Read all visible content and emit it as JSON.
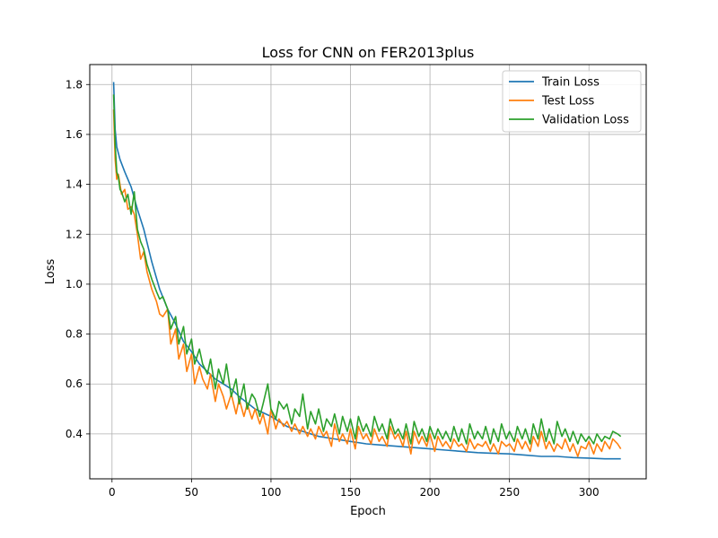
{
  "chart_data": {
    "type": "line",
    "title": "Loss for CNN on FER2013plus",
    "xlabel": "Epoch",
    "ylabel": "Loss",
    "xlim": [
      -14,
      336
    ],
    "ylim": [
      0.22,
      1.88
    ],
    "xticks": [
      0,
      50,
      100,
      150,
      200,
      250,
      300
    ],
    "yticks": [
      0.4,
      0.6,
      0.8,
      1.0,
      1.2,
      1.4,
      1.6,
      1.8
    ],
    "ytick_labels": [
      "0.4",
      "0.6",
      "0.8",
      "1.0",
      "1.2",
      "1.4",
      "1.6",
      "1.8"
    ],
    "grid": true,
    "legend_position": "top-right",
    "series": [
      {
        "name": "Train Loss",
        "color": "#1f77b4",
        "x": [
          1,
          2,
          3,
          5,
          8,
          12,
          16,
          20,
          25,
          30,
          35,
          40,
          45,
          50,
          55,
          60,
          65,
          70,
          75,
          80,
          90,
          100,
          110,
          120,
          130,
          140,
          150,
          160,
          170,
          180,
          190,
          200,
          210,
          220,
          230,
          240,
          250,
          260,
          270,
          280,
          290,
          300,
          310,
          320
        ],
        "y": [
          1.81,
          1.62,
          1.55,
          1.5,
          1.45,
          1.39,
          1.3,
          1.22,
          1.09,
          0.98,
          0.9,
          0.84,
          0.77,
          0.73,
          0.68,
          0.65,
          0.62,
          0.6,
          0.58,
          0.55,
          0.5,
          0.47,
          0.43,
          0.41,
          0.39,
          0.38,
          0.37,
          0.36,
          0.355,
          0.35,
          0.345,
          0.34,
          0.335,
          0.33,
          0.325,
          0.322,
          0.32,
          0.315,
          0.31,
          0.31,
          0.305,
          0.303,
          0.3,
          0.3
        ]
      },
      {
        "name": "Test Loss",
        "color": "#ff7f0e",
        "x": [
          1,
          2,
          3,
          4,
          5,
          6,
          8,
          10,
          12,
          14,
          16,
          18,
          20,
          22,
          25,
          28,
          30,
          32,
          35,
          37,
          40,
          42,
          45,
          47,
          50,
          52,
          55,
          57,
          60,
          62,
          65,
          67,
          70,
          72,
          75,
          78,
          80,
          83,
          85,
          88,
          90,
          93,
          95,
          98,
          100,
          103,
          105,
          108,
          110,
          113,
          115,
          118,
          120,
          123,
          125,
          128,
          130,
          133,
          135,
          138,
          140,
          143,
          145,
          148,
          150,
          153,
          155,
          158,
          160,
          163,
          165,
          168,
          170,
          173,
          175,
          178,
          180,
          183,
          185,
          188,
          190,
          193,
          195,
          198,
          200,
          203,
          205,
          208,
          210,
          213,
          215,
          218,
          220,
          223,
          225,
          228,
          230,
          233,
          235,
          238,
          240,
          243,
          245,
          248,
          250,
          253,
          255,
          258,
          260,
          263,
          265,
          268,
          270,
          273,
          275,
          278,
          280,
          283,
          285,
          288,
          290,
          293,
          295,
          298,
          300,
          303,
          305,
          308,
          310,
          313,
          315,
          318,
          320
        ],
        "y": [
          1.7,
          1.5,
          1.42,
          1.44,
          1.4,
          1.36,
          1.38,
          1.3,
          1.31,
          1.28,
          1.2,
          1.1,
          1.13,
          1.05,
          0.98,
          0.93,
          0.88,
          0.87,
          0.9,
          0.76,
          0.82,
          0.7,
          0.76,
          0.65,
          0.72,
          0.6,
          0.67,
          0.62,
          0.58,
          0.64,
          0.53,
          0.6,
          0.55,
          0.5,
          0.56,
          0.48,
          0.54,
          0.47,
          0.52,
          0.46,
          0.5,
          0.44,
          0.48,
          0.4,
          0.5,
          0.42,
          0.46,
          0.43,
          0.45,
          0.41,
          0.44,
          0.4,
          0.43,
          0.39,
          0.42,
          0.38,
          0.43,
          0.39,
          0.41,
          0.35,
          0.44,
          0.37,
          0.4,
          0.36,
          0.42,
          0.34,
          0.43,
          0.38,
          0.4,
          0.36,
          0.42,
          0.37,
          0.39,
          0.35,
          0.43,
          0.38,
          0.4,
          0.35,
          0.41,
          0.32,
          0.41,
          0.36,
          0.39,
          0.35,
          0.4,
          0.33,
          0.39,
          0.35,
          0.37,
          0.34,
          0.38,
          0.35,
          0.36,
          0.33,
          0.38,
          0.34,
          0.36,
          0.35,
          0.37,
          0.33,
          0.36,
          0.32,
          0.37,
          0.35,
          0.36,
          0.33,
          0.38,
          0.34,
          0.37,
          0.33,
          0.39,
          0.35,
          0.41,
          0.34,
          0.37,
          0.33,
          0.36,
          0.34,
          0.38,
          0.33,
          0.36,
          0.31,
          0.35,
          0.34,
          0.37,
          0.32,
          0.36,
          0.33,
          0.37,
          0.34,
          0.38,
          0.36,
          0.34
        ]
      },
      {
        "name": "Validation Loss",
        "color": "#2ca02c",
        "x": [
          1,
          2,
          3,
          4,
          5,
          6,
          8,
          10,
          12,
          14,
          16,
          18,
          20,
          22,
          25,
          28,
          30,
          32,
          35,
          37,
          40,
          42,
          45,
          47,
          50,
          52,
          55,
          57,
          60,
          62,
          65,
          67,
          70,
          72,
          75,
          78,
          80,
          83,
          85,
          88,
          90,
          93,
          95,
          98,
          100,
          103,
          105,
          108,
          110,
          113,
          115,
          118,
          120,
          123,
          125,
          128,
          130,
          133,
          135,
          138,
          140,
          143,
          145,
          148,
          150,
          153,
          155,
          158,
          160,
          163,
          165,
          168,
          170,
          173,
          175,
          178,
          180,
          183,
          185,
          188,
          190,
          193,
          195,
          198,
          200,
          203,
          205,
          208,
          210,
          213,
          215,
          218,
          220,
          223,
          225,
          228,
          230,
          233,
          235,
          238,
          240,
          243,
          245,
          248,
          250,
          253,
          255,
          258,
          260,
          263,
          265,
          268,
          270,
          273,
          275,
          278,
          280,
          283,
          285,
          288,
          290,
          293,
          295,
          298,
          300,
          303,
          305,
          308,
          310,
          313,
          315,
          318,
          320
        ],
        "y": [
          1.76,
          1.56,
          1.45,
          1.43,
          1.38,
          1.37,
          1.33,
          1.36,
          1.28,
          1.37,
          1.22,
          1.17,
          1.14,
          1.08,
          1.02,
          0.97,
          0.94,
          0.95,
          0.9,
          0.82,
          0.87,
          0.76,
          0.83,
          0.72,
          0.78,
          0.68,
          0.74,
          0.68,
          0.64,
          0.7,
          0.58,
          0.66,
          0.6,
          0.68,
          0.55,
          0.62,
          0.52,
          0.6,
          0.5,
          0.56,
          0.54,
          0.47,
          0.52,
          0.6,
          0.5,
          0.46,
          0.53,
          0.5,
          0.52,
          0.44,
          0.5,
          0.47,
          0.56,
          0.42,
          0.49,
          0.44,
          0.5,
          0.41,
          0.46,
          0.43,
          0.48,
          0.4,
          0.47,
          0.41,
          0.46,
          0.38,
          0.47,
          0.41,
          0.44,
          0.39,
          0.47,
          0.41,
          0.44,
          0.38,
          0.46,
          0.4,
          0.42,
          0.38,
          0.44,
          0.36,
          0.45,
          0.39,
          0.42,
          0.37,
          0.43,
          0.38,
          0.42,
          0.38,
          0.41,
          0.37,
          0.43,
          0.37,
          0.42,
          0.36,
          0.44,
          0.38,
          0.41,
          0.38,
          0.43,
          0.36,
          0.42,
          0.37,
          0.44,
          0.38,
          0.41,
          0.37,
          0.43,
          0.38,
          0.42,
          0.36,
          0.44,
          0.38,
          0.46,
          0.37,
          0.42,
          0.36,
          0.45,
          0.39,
          0.42,
          0.37,
          0.41,
          0.36,
          0.4,
          0.37,
          0.39,
          0.36,
          0.4,
          0.37,
          0.39,
          0.38,
          0.41,
          0.4,
          0.39
        ]
      }
    ]
  }
}
